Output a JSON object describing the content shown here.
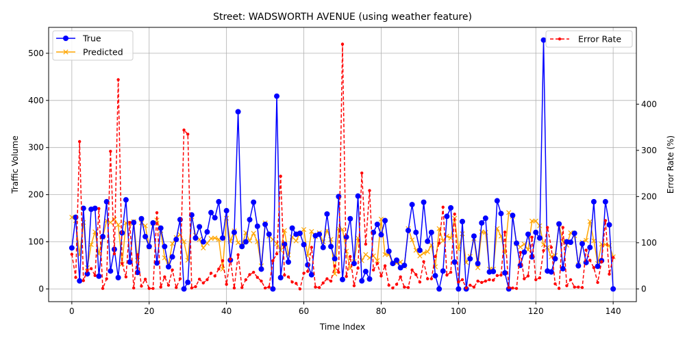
{
  "chart_data": {
    "type": "line",
    "title": "Street: WADSWORTH AVENUE (using weather feature)",
    "xlabel": "Time Index",
    "ylabel": "Traffic Volume",
    "ylabel_right": "Error Rate (%)",
    "xlim": [
      -6,
      146
    ],
    "ylim": [
      -27,
      555
    ],
    "ylim_right": [
      -27.55,
      566.3
    ],
    "xticks": [
      0,
      20,
      40,
      60,
      80,
      100,
      120,
      140
    ],
    "yticks": [
      0,
      100,
      200,
      300,
      400,
      500
    ],
    "yticks_right": [
      0,
      100,
      200,
      300,
      400
    ],
    "grid": true,
    "legend_left": "top-left",
    "legend_right": "top-right",
    "colors": {
      "true": "#0000ff",
      "predicted": "#ffa500",
      "error": "#ff0000"
    },
    "series": [
      {
        "name": "True",
        "axis": "left",
        "marker": "circle",
        "values": [
          87,
          152,
          17,
          171,
          32,
          169,
          171,
          27,
          111,
          185,
          38,
          84,
          24,
          119,
          189,
          57,
          141,
          35,
          149,
          111,
          90,
          140,
          55,
          129,
          90,
          47,
          68,
          105,
          147,
          0,
          14,
          157,
          108,
          132,
          100,
          121,
          162,
          151,
          185,
          108,
          166,
          61,
          120,
          376,
          90,
          100,
          147,
          184,
          133,
          42,
          137,
          116,
          0,
          409,
          24,
          95,
          57,
          129,
          116,
          118,
          94,
          51,
          30,
          113,
          116,
          88,
          159,
          90,
          64,
          196,
          20,
          110,
          149,
          54,
          197,
          17,
          37,
          21,
          120,
          137,
          115,
          145,
          80,
          54,
          61,
          45,
          50,
          124,
          179,
          120,
          82,
          184,
          101,
          120,
          28,
          0,
          38,
          154,
          172,
          57,
          0,
          143,
          0,
          64,
          112,
          54,
          140,
          150,
          36,
          37,
          187,
          160,
          34,
          0,
          156,
          97,
          50,
          78,
          116,
          68,
          120,
          108,
          528,
          38,
          36,
          64,
          138,
          43,
          100,
          99,
          118,
          49,
          96,
          56,
          88,
          185,
          48,
          60,
          185,
          136,
          0
        ]
      },
      {
        "name": "Predicted",
        "axis": "left",
        "marker": "x",
        "values": [
          152,
          145,
          72,
          141,
          45,
          94,
          121,
          74,
          110,
          145,
          141,
          148,
          136,
          53,
          140,
          139,
          143,
          61,
          140,
          134,
          89,
          139,
          146,
          124,
          66,
          51,
          96,
          109,
          115,
          100,
          61,
          153,
          114,
          105,
          87,
          97,
          107,
          108,
          105,
          42,
          150,
          101,
          123,
          98,
          92,
          119,
          102,
          118,
          100,
          49,
          140,
          112,
          105,
          96,
          82,
          124,
          72,
          110,
          102,
          118,
          126,
          70,
          122,
          111,
          119,
          100,
          124,
          105,
          32,
          128,
          126,
          80,
          44,
          58,
          108,
          60,
          73,
          66,
          70,
          60,
          148,
          73,
          73,
          55,
          55,
          57,
          48,
          128,
          104,
          82,
          70,
          76,
          79,
          93,
          47,
          128,
          102,
          112,
          108,
          150,
          84,
          117,
          56,
          69,
          107,
          45,
          121,
          120,
          42,
          42,
          128,
          112,
          76,
          162,
          154,
          96,
          89,
          95,
          83,
          144,
          144,
          134,
          94,
          88,
          68,
          71,
          137,
          101,
          93,
          119,
          113,
          51,
          99,
          103,
          143,
          102,
          54,
          95,
          94,
          92,
          68
        ]
      },
      {
        "name": "Error Rate",
        "axis": "right",
        "marker": "dot",
        "values": [
          75,
          25,
          319,
          18,
          40,
          44,
          29,
          174,
          1,
          22,
          298,
          76,
          453,
          55,
          26,
          144,
          2,
          74,
          6,
          21,
          1,
          1,
          165,
          4,
          26,
          8,
          41,
          3,
          22,
          344,
          335,
          2,
          5,
          21,
          13,
          20,
          34,
          28,
          43,
          61,
          10,
          65,
          2,
          74,
          3,
          20,
          31,
          36,
          25,
          17,
          2,
          4,
          61,
          76,
          244,
          30,
          26,
          15,
          12,
          0,
          34,
          38,
          90,
          4,
          3,
          13,
          22,
          17,
          50,
          36,
          530,
          27,
          70,
          7,
          45,
          251,
          97,
          213,
          41,
          55,
          28,
          50,
          8,
          2,
          10,
          26,
          4,
          3,
          41,
          31,
          15,
          59,
          22,
          22,
          70,
          99,
          177,
          30,
          36,
          162,
          15,
          20,
          2,
          8,
          4,
          17,
          14,
          17,
          20,
          19,
          29,
          30,
          123,
          3,
          2,
          1,
          79,
          22,
          28,
          112,
          20,
          24,
          83,
          133,
          90,
          11,
          1,
          133,
          7,
          20,
          4,
          4,
          3,
          84,
          62,
          46,
          14,
          59,
          148,
          32,
          68
        ]
      }
    ]
  }
}
